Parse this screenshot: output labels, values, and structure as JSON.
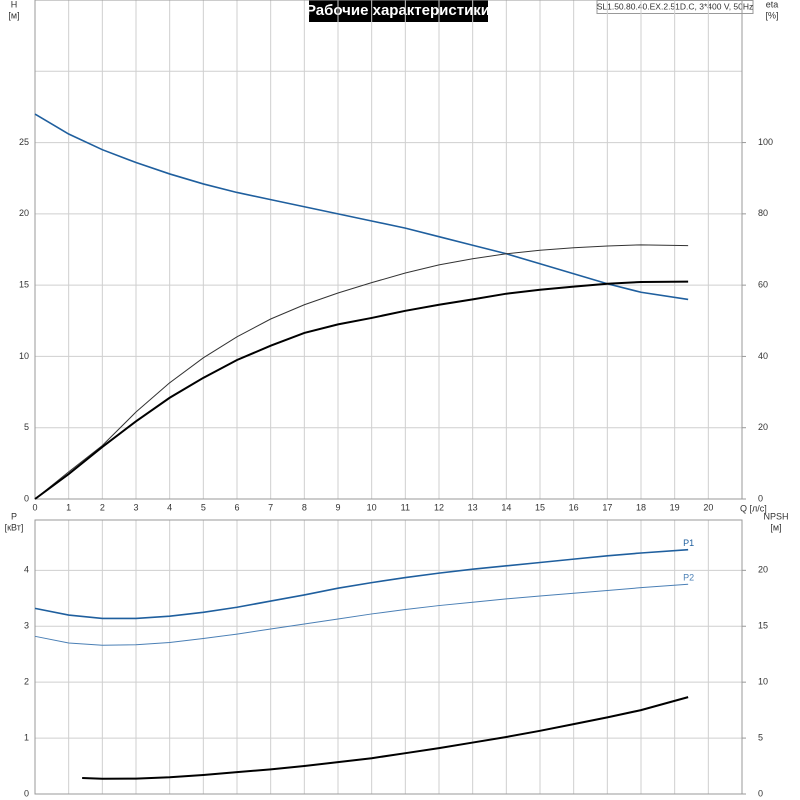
{
  "chart_data": [
    {
      "type": "line",
      "title": "Рабочие характеристики",
      "subtitle": "SL1.50.80.40.EX.2.51D.C, 3*400 V, 50Hz",
      "xlabel": "Q [л/с]",
      "ylabel": "H",
      "yunit": "[м]",
      "y2label": "eta",
      "y2unit": "[%]",
      "xlim": [
        0,
        21
      ],
      "xticks": [
        0,
        1,
        2,
        3,
        4,
        5,
        6,
        7,
        8,
        9,
        10,
        11,
        12,
        13,
        14,
        15,
        16,
        17,
        18,
        19,
        20
      ],
      "ylim": [
        0,
        35
      ],
      "yticks": [
        0,
        5,
        10,
        15,
        20,
        25,
        {
          "value": 30,
          "label": null
        }
      ],
      "y2lim": [
        0,
        140
      ],
      "y2ticks": [
        0,
        20,
        40,
        60,
        80,
        100
      ],
      "grid": true,
      "x": [
        0,
        1,
        2,
        3,
        4,
        5,
        6,
        7,
        8,
        9,
        10,
        11,
        12,
        13,
        14,
        15,
        16,
        17,
        18,
        19.4
      ],
      "series": [
        {
          "color": "#1f5f9e",
          "line_width": 1.6,
          "values": [
            27.0,
            25.6,
            24.5,
            23.6,
            22.8,
            22.1,
            21.5,
            21.0,
            20.5,
            20.0,
            19.5,
            19.0,
            18.4,
            17.8,
            17.2,
            16.5,
            15.8,
            15.1,
            14.5,
            14.0
          ]
        },
        {
          "color": "#333333",
          "line_width": 1,
          "axis": "y2",
          "values": [
            0,
            7.6,
            15,
            24.4,
            32.6,
            39.6,
            45.5,
            50.5,
            54.5,
            57.8,
            60.7,
            63.4,
            65.7,
            67.4,
            68.8,
            69.8,
            70.5,
            71,
            71.3,
            71.1
          ]
        },
        {
          "color": "#000000",
          "line_width": 2,
          "axis": "y2",
          "values": [
            0,
            7,
            14.6,
            21.8,
            28.4,
            34,
            39,
            43,
            46.6,
            49,
            50.8,
            52.8,
            54.5,
            56,
            57.6,
            58.7,
            59.6,
            60.4,
            60.9,
            61
          ]
        }
      ]
    },
    {
      "type": "line",
      "ylabel": "P",
      "yunit": "[кВт]",
      "y2label": "NPSH",
      "y2unit": "[м]",
      "xlim": [
        0,
        21
      ],
      "ylim": [
        0,
        4.9
      ],
      "yticks": [
        0,
        1,
        2,
        3,
        4
      ],
      "y2lim": [
        0,
        24.5
      ],
      "y2ticks": [
        0,
        5,
        10,
        15,
        20
      ],
      "grid": true,
      "x": [
        0,
        1,
        2,
        3,
        4,
        5,
        6,
        7,
        8,
        9,
        10,
        11,
        12,
        13,
        14,
        15,
        16,
        17,
        18,
        19.4
      ],
      "series": [
        {
          "name": "P1",
          "color": "#1f5f9e",
          "line_width": 1.6,
          "values": [
            3.32,
            3.2,
            3.14,
            3.14,
            3.18,
            3.25,
            3.34,
            3.45,
            3.56,
            3.68,
            3.78,
            3.87,
            3.95,
            4.02,
            4.08,
            4.14,
            4.2,
            4.26,
            4.31,
            4.37
          ]
        },
        {
          "name": "P2",
          "color": "#4a7fb5",
          "line_width": 1,
          "values": [
            2.82,
            2.7,
            2.66,
            2.67,
            2.71,
            2.78,
            2.86,
            2.95,
            3.04,
            3.13,
            3.22,
            3.3,
            3.37,
            3.43,
            3.49,
            3.54,
            3.59,
            3.64,
            3.69,
            3.75
          ]
        },
        {
          "color": "#000000",
          "line_width": 2,
          "axis": "y2",
          "x": [
            1.4,
            2,
            3,
            4,
            5,
            6,
            7,
            8,
            9,
            10,
            11,
            12,
            13,
            14,
            15,
            16,
            17,
            18,
            19.4
          ],
          "values": [
            1.43,
            1.36,
            1.38,
            1.5,
            1.7,
            1.96,
            2.2,
            2.5,
            2.85,
            3.2,
            3.65,
            4.1,
            4.6,
            5.1,
            5.65,
            6.25,
            6.85,
            7.5,
            8.66
          ]
        }
      ]
    }
  ]
}
